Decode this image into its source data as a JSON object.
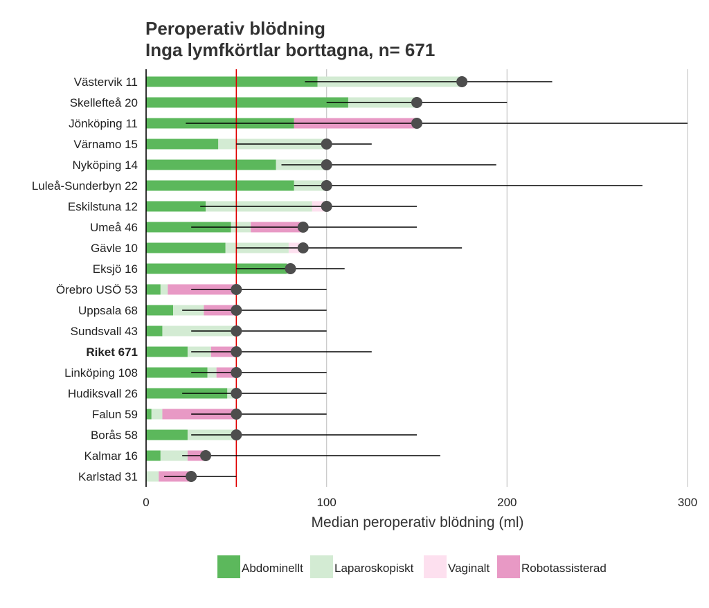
{
  "chart_data": {
    "type": "bar",
    "orientation": "horizontal",
    "stacked": true,
    "title": [
      "Peroperativ blödning",
      "Inga lymfkörtlar borttagna, n= 671"
    ],
    "xlabel": "Median peroperativ blödning (ml)",
    "xlim": [
      0,
      300
    ],
    "xticks": [
      0,
      100,
      200,
      300
    ],
    "xtick_labels": [
      "0",
      "100",
      "200",
      "300"
    ],
    "grid": "vertical",
    "reference_line": 50,
    "categories": [
      "Västervik 11",
      "Skellefteå 20",
      "Jönköping 11",
      "Värnamo 15",
      "Nyköping 14",
      "Luleå-Sunderbyn 22",
      "Eskilstuna 12",
      "Umeå 46",
      "Gävle 10",
      "Eksjö 16",
      "Örebro USÖ 53",
      "Uppsala 68",
      "Sundsvall 43",
      "Riket 671",
      "Linköping 108",
      "Hudiksvall 26",
      "Falun 59",
      "Borås 58",
      "Kalmar 16",
      "Karlstad 31"
    ],
    "bold_category": "Riket 671",
    "series": [
      {
        "name": "Abdominellt",
        "color": "#5cb85c",
        "values": [
          95,
          112,
          82,
          40,
          72,
          82,
          33,
          47,
          44,
          78,
          8,
          15,
          9,
          23,
          34,
          45,
          3,
          23,
          8,
          0
        ]
      },
      {
        "name": "Laparoskopiskt",
        "color": "#d3ebd3",
        "values": [
          80,
          38,
          0,
          60,
          28,
          18,
          59,
          11,
          35,
          2,
          4,
          17,
          41,
          13,
          5,
          5,
          6,
          27,
          15,
          7
        ]
      },
      {
        "name": "Vaginalt",
        "color": "#fde0ef",
        "values": [
          0,
          0,
          0,
          0,
          0,
          0,
          8,
          0,
          9,
          0,
          0,
          0,
          0,
          0,
          0,
          0,
          0,
          0,
          0,
          0
        ]
      },
      {
        "name": "Robotassisterad",
        "color": "#e899c5",
        "values": [
          0,
          0,
          68,
          0,
          0,
          0,
          0,
          29,
          0,
          0,
          38,
          18,
          0,
          14,
          11,
          0,
          41,
          0,
          10,
          18
        ]
      }
    ],
    "median": [
      175,
      150,
      150,
      100,
      100,
      100,
      100,
      87,
      87,
      80,
      50,
      50,
      50,
      50,
      50,
      50,
      50,
      50,
      33,
      25
    ],
    "whisker_low": [
      88,
      100,
      22,
      50,
      75,
      82,
      30,
      25,
      50,
      50,
      25,
      20,
      25,
      25,
      25,
      20,
      25,
      25,
      20,
      10
    ],
    "whisker_high": [
      225,
      200,
      300,
      125,
      194,
      275,
      150,
      150,
      175,
      110,
      100,
      100,
      100,
      125,
      100,
      100,
      100,
      150,
      163,
      50
    ],
    "legend_position": "bottom",
    "marker_color": "#4d4d4d",
    "reference_line_color": "#e00000"
  }
}
